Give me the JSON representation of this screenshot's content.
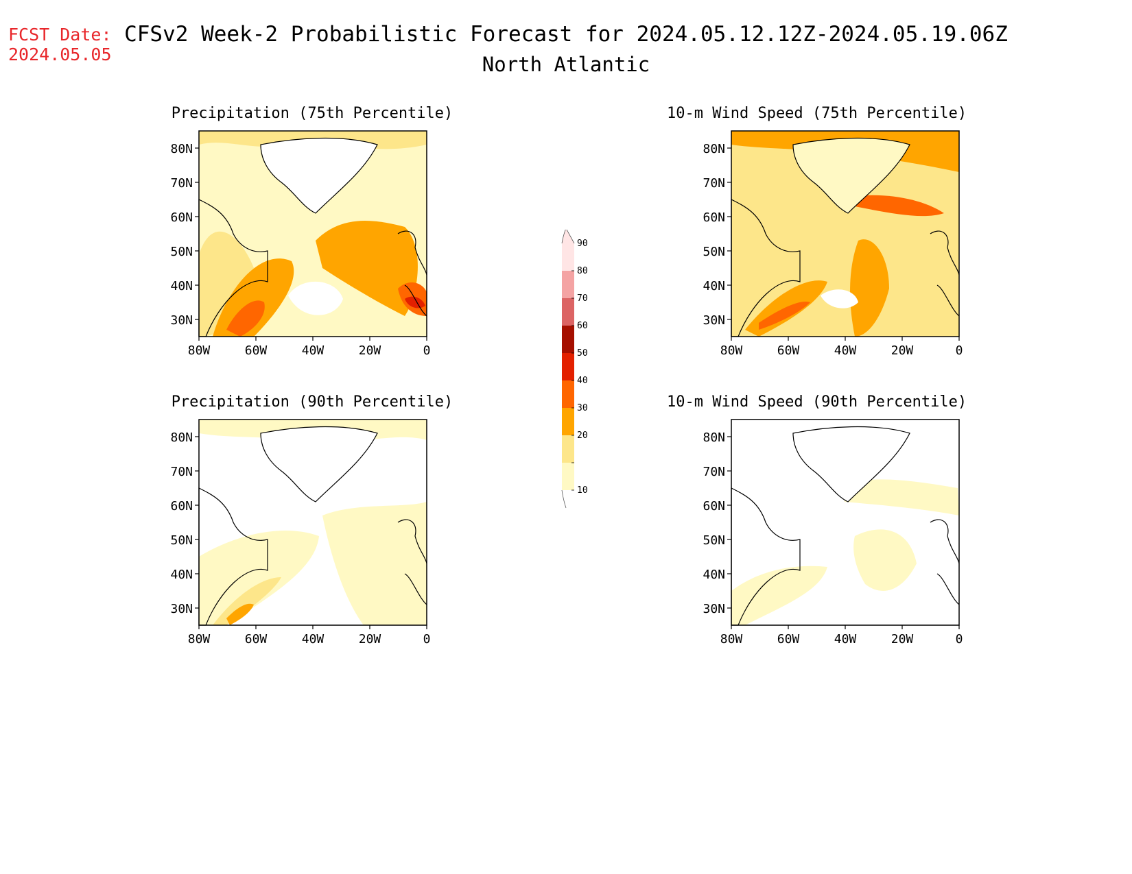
{
  "header": {
    "fcst_label": "FCST Date:",
    "fcst_date": "2024.05.05",
    "title": "CFSv2 Week-2 Probabilistic Forecast for 2024.05.12.12Z-2024.05.19.06Z",
    "region": "North Atlantic"
  },
  "panels": [
    {
      "title": "Precipitation (75th Percentile)"
    },
    {
      "title": "10-m Wind Speed (75th Percentile)"
    },
    {
      "title": "Precipitation (90th Percentile)"
    },
    {
      "title": "10-m Wind Speed (90th Percentile)"
    }
  ],
  "axes": {
    "lat_labels": [
      "80N",
      "70N",
      "60N",
      "50N",
      "40N",
      "30N"
    ],
    "lat_values": [
      80,
      70,
      60,
      50,
      40,
      30
    ],
    "lon_labels": [
      "80W",
      "60W",
      "40W",
      "20W",
      "0"
    ],
    "lon_values": [
      -80,
      -60,
      -40,
      -20,
      0
    ],
    "lat_range": [
      25,
      85
    ],
    "lon_range": [
      -80,
      0
    ]
  },
  "colorbar": {
    "labels": [
      "10",
      "20",
      "30",
      "40",
      "50",
      "60",
      "70",
      "80",
      "90"
    ],
    "colors": [
      "#fff9c4",
      "#fde68a",
      "#ffa500",
      "#ff6600",
      "#e32000",
      "#a50f00",
      "#dc6464",
      "#f4a3a3",
      "#ffe5e5"
    ]
  }
}
